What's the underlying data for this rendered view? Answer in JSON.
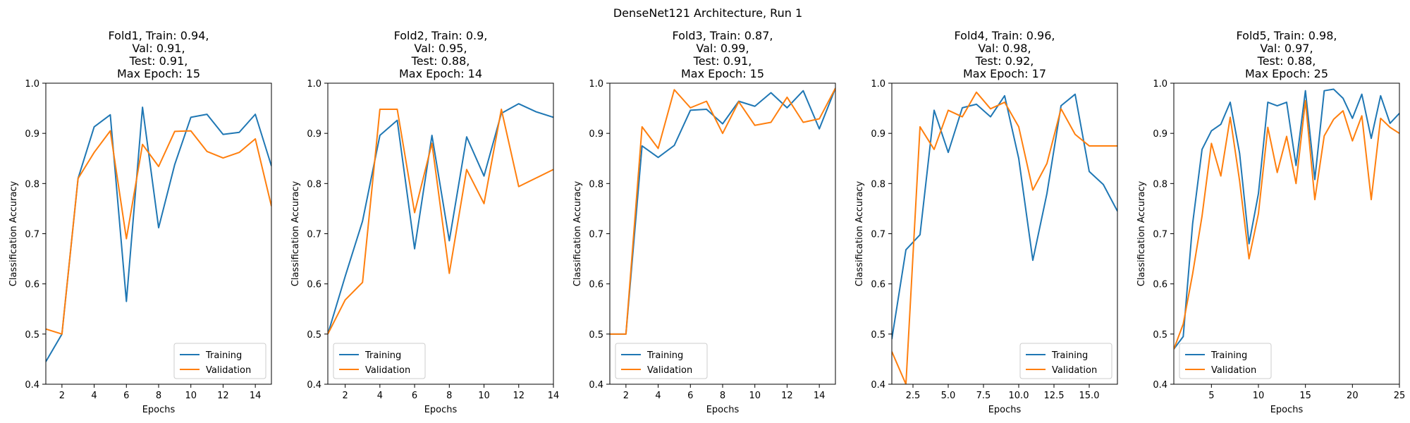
{
  "suptitle": "DenseNet121 Architecture, Run 1",
  "colors": {
    "training": "#1f77b4",
    "validation": "#ff7f0e"
  },
  "chart_data": [
    {
      "type": "line",
      "title_lines": [
        "Fold1, Train: 0.94,",
        "Val: 0.91,",
        "Test: 0.91,",
        "Max Epoch: 15"
      ],
      "xlabel": "Epochs",
      "ylabel": "Classification Accuracy",
      "xlim": [
        1,
        15
      ],
      "ylim": [
        0.4,
        1.0
      ],
      "xticks": [
        2,
        4,
        6,
        8,
        10,
        12,
        14
      ],
      "xtick_labels": [
        "2",
        "4",
        "6",
        "8",
        "10",
        "12",
        "14"
      ],
      "yticks": [
        0.4,
        0.5,
        0.6,
        0.7,
        0.8,
        0.9,
        1.0
      ],
      "ytick_labels": [
        "0.4",
        "0.5",
        "0.6",
        "0.7",
        "0.8",
        "0.9",
        "1.0"
      ],
      "legend_position": "lower right",
      "x": [
        1,
        2,
        3,
        4,
        5,
        6,
        7,
        8,
        9,
        10,
        11,
        12,
        13,
        14,
        15
      ],
      "series": [
        {
          "name": "Training",
          "values": [
            0.445,
            0.5,
            0.81,
            0.913,
            0.937,
            0.565,
            0.952,
            0.712,
            0.838,
            0.932,
            0.938,
            0.898,
            0.902,
            0.938,
            0.835
          ]
        },
        {
          "name": "Validation",
          "values": [
            0.51,
            0.5,
            0.81,
            0.862,
            0.905,
            0.69,
            0.878,
            0.834,
            0.904,
            0.905,
            0.864,
            0.851,
            0.862,
            0.889,
            0.755
          ]
        }
      ]
    },
    {
      "type": "line",
      "title_lines": [
        "Fold2, Train: 0.9,",
        "Val: 0.95,",
        "Test: 0.88,",
        "Max Epoch: 14"
      ],
      "xlabel": "Epochs",
      "ylabel": "Classification Accuracy",
      "xlim": [
        1,
        14
      ],
      "ylim": [
        0.4,
        1.0
      ],
      "xticks": [
        2,
        4,
        6,
        8,
        10,
        12,
        14
      ],
      "xtick_labels": [
        "2",
        "4",
        "6",
        "8",
        "10",
        "12",
        "14"
      ],
      "yticks": [
        0.4,
        0.5,
        0.6,
        0.7,
        0.8,
        0.9,
        1.0
      ],
      "ytick_labels": [
        "0.4",
        "0.5",
        "0.6",
        "0.7",
        "0.8",
        "0.9",
        "1.0"
      ],
      "legend_position": "lower left",
      "x": [
        1,
        2,
        3,
        4,
        5,
        6,
        7,
        8,
        9,
        10,
        11,
        12,
        13,
        14
      ],
      "series": [
        {
          "name": "Training",
          "values": [
            0.5,
            0.615,
            0.725,
            0.896,
            0.926,
            0.67,
            0.896,
            0.686,
            0.893,
            0.815,
            0.94,
            0.959,
            0.943,
            0.932
          ]
        },
        {
          "name": "Validation",
          "values": [
            0.5,
            0.568,
            0.603,
            0.948,
            0.948,
            0.742,
            0.88,
            0.621,
            0.828,
            0.76,
            0.948,
            0.794,
            0.811,
            0.828
          ]
        }
      ]
    },
    {
      "type": "line",
      "title_lines": [
        "Fold3, Train: 0.87,",
        "Val: 0.99,",
        "Test: 0.91,",
        "Max Epoch: 15"
      ],
      "xlabel": "Epochs",
      "ylabel": "Classification Accuracy",
      "xlim": [
        1,
        15
      ],
      "ylim": [
        0.4,
        1.0
      ],
      "xticks": [
        2,
        4,
        6,
        8,
        10,
        12,
        14
      ],
      "xtick_labels": [
        "2",
        "4",
        "6",
        "8",
        "10",
        "12",
        "14"
      ],
      "yticks": [
        0.4,
        0.5,
        0.6,
        0.7,
        0.8,
        0.9,
        1.0
      ],
      "ytick_labels": [
        "0.4",
        "0.5",
        "0.6",
        "0.7",
        "0.8",
        "0.9",
        "1.0"
      ],
      "legend_position": "lower left",
      "x": [
        1,
        2,
        3,
        4,
        5,
        6,
        7,
        8,
        9,
        10,
        11,
        12,
        13,
        14,
        15
      ],
      "series": [
        {
          "name": "Training",
          "values": [
            0.5,
            0.5,
            0.875,
            0.852,
            0.876,
            0.946,
            0.948,
            0.919,
            0.964,
            0.954,
            0.981,
            0.951,
            0.985,
            0.909,
            0.99
          ]
        },
        {
          "name": "Validation",
          "values": [
            0.5,
            0.5,
            0.913,
            0.87,
            0.987,
            0.951,
            0.964,
            0.9,
            0.963,
            0.916,
            0.922,
            0.972,
            0.922,
            0.929,
            0.99
          ]
        }
      ]
    },
    {
      "type": "line",
      "title_lines": [
        "Fold4, Train: 0.96,",
        "Val: 0.98,",
        "Test: 0.92,",
        "Max Epoch: 17"
      ],
      "xlabel": "Epochs",
      "ylabel": "Classification Accuracy",
      "xlim": [
        1,
        17
      ],
      "ylim": [
        0.4,
        1.0
      ],
      "xticks": [
        2.5,
        5.0,
        7.5,
        10.0,
        12.5,
        15.0
      ],
      "xtick_labels": [
        "2.5",
        "5.0",
        "7.5",
        "10.0",
        "12.5",
        "15.0"
      ],
      "yticks": [
        0.4,
        0.5,
        0.6,
        0.7,
        0.8,
        0.9,
        1.0
      ],
      "ytick_labels": [
        "0.4",
        "0.5",
        "0.6",
        "0.7",
        "0.8",
        "0.9",
        "1.0"
      ],
      "legend_position": "lower right",
      "x": [
        1,
        2,
        3,
        4,
        5,
        6,
        7,
        8,
        9,
        10,
        11,
        12,
        13,
        14,
        15,
        16,
        17
      ],
      "series": [
        {
          "name": "Training",
          "values": [
            0.49,
            0.668,
            0.698,
            0.946,
            0.862,
            0.951,
            0.958,
            0.933,
            0.975,
            0.85,
            0.647,
            0.78,
            0.955,
            0.978,
            0.824,
            0.798,
            0.745
          ]
        },
        {
          "name": "Validation",
          "values": [
            0.465,
            0.4,
            0.913,
            0.868,
            0.946,
            0.933,
            0.982,
            0.949,
            0.962,
            0.913,
            0.787,
            0.84,
            0.949,
            0.898,
            0.875,
            0.875,
            0.875
          ]
        }
      ]
    },
    {
      "type": "line",
      "title_lines": [
        "Fold5, Train: 0.98,",
        "Val: 0.97,",
        "Test: 0.88,",
        "Max Epoch: 25"
      ],
      "xlabel": "Epochs",
      "ylabel": "Classification Accuracy",
      "xlim": [
        1,
        25
      ],
      "ylim": [
        0.4,
        1.0
      ],
      "xticks": [
        5,
        10,
        15,
        20,
        25
      ],
      "xtick_labels": [
        "5",
        "10",
        "15",
        "20",
        "25"
      ],
      "yticks": [
        0.4,
        0.5,
        0.6,
        0.7,
        0.8,
        0.9,
        1.0
      ],
      "ytick_labels": [
        "0.4",
        "0.5",
        "0.6",
        "0.7",
        "0.8",
        "0.9",
        "1.0"
      ],
      "legend_position": "lower left",
      "x": [
        1,
        2,
        3,
        4,
        5,
        6,
        7,
        8,
        9,
        10,
        11,
        12,
        13,
        14,
        15,
        16,
        17,
        18,
        19,
        20,
        21,
        22,
        23,
        24,
        25
      ],
      "series": [
        {
          "name": "Training",
          "values": [
            0.47,
            0.495,
            0.72,
            0.868,
            0.905,
            0.918,
            0.962,
            0.86,
            0.68,
            0.78,
            0.962,
            0.955,
            0.962,
            0.836,
            0.985,
            0.808,
            0.985,
            0.988,
            0.97,
            0.93,
            0.978,
            0.89,
            0.975,
            0.92,
            0.94
          ]
        },
        {
          "name": "Validation",
          "values": [
            0.47,
            0.52,
            0.62,
            0.735,
            0.88,
            0.815,
            0.932,
            0.805,
            0.65,
            0.74,
            0.912,
            0.822,
            0.894,
            0.8,
            0.965,
            0.768,
            0.895,
            0.928,
            0.945,
            0.885,
            0.935,
            0.768,
            0.93,
            0.912,
            0.9
          ]
        }
      ]
    }
  ]
}
